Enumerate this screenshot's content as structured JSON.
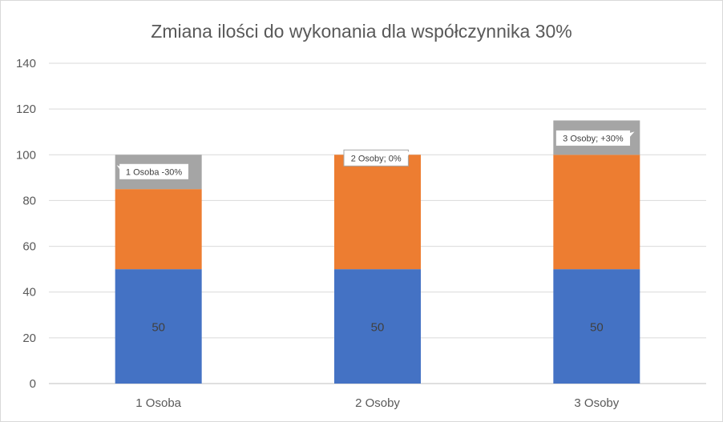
{
  "chart_data": {
    "type": "bar",
    "stacked": true,
    "title": "Zmiana ilości do wykonania dla współczynnika 30%",
    "xlabel": "",
    "ylabel": "",
    "ylim": [
      0,
      140
    ],
    "ytick_step": 20,
    "grid": true,
    "legend": "none",
    "categories": [
      "1 Osoba",
      "2 Osoby",
      "3 Osoby"
    ],
    "series": [
      {
        "values": [
          50,
          50,
          50
        ],
        "color": "#4472C4",
        "labels": [
          "50",
          "50",
          "50"
        ]
      },
      {
        "values": [
          35,
          50,
          50
        ],
        "color": "#ED7D31"
      },
      {
        "values": [
          15,
          0,
          15
        ],
        "color": "#A5A5A5"
      }
    ],
    "callouts": [
      "1 Osoba -30%",
      "2 Osoby; 0%",
      "3 Osoby; +30%"
    ]
  }
}
